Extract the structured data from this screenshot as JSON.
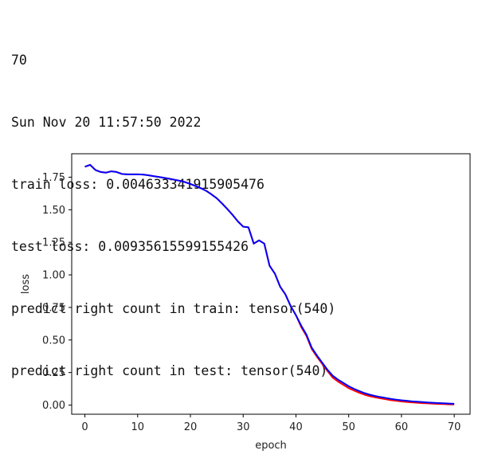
{
  "output": {
    "lines": [
      "70",
      "Sun Nov 20 11:57:50 2022",
      "train loss: 0.004633341915905476",
      "test loss: 0.00935615599155426",
      "predict right count in train: tensor(540)",
      "predict right count in test: tensor(540)"
    ]
  },
  "chart_data": {
    "type": "line",
    "title": "",
    "xlabel": "epoch",
    "ylabel": "loss",
    "xlim": [
      -2.5,
      73
    ],
    "ylim": [
      -0.07,
      1.93
    ],
    "xticks": [
      0,
      10,
      20,
      30,
      40,
      50,
      60,
      70
    ],
    "yticks": [
      0.0,
      0.25,
      0.5,
      0.75,
      1.0,
      1.25,
      1.5,
      1.75
    ],
    "ytick_labels": [
      "0.00",
      "0.25",
      "0.50",
      "0.75",
      "1.00",
      "1.25",
      "1.50",
      "1.75"
    ],
    "grid": false,
    "legend": "none",
    "x": [
      0,
      1,
      2,
      3,
      4,
      5,
      6,
      7,
      8,
      9,
      10,
      11,
      12,
      13,
      14,
      15,
      16,
      17,
      18,
      19,
      20,
      21,
      22,
      23,
      24,
      25,
      26,
      27,
      28,
      29,
      30,
      31,
      32,
      33,
      34,
      35,
      36,
      37,
      38,
      39,
      40,
      41,
      42,
      43,
      44,
      45,
      46,
      47,
      48,
      49,
      50,
      51,
      52,
      53,
      54,
      55,
      56,
      57,
      58,
      59,
      60,
      61,
      62,
      63,
      64,
      65,
      66,
      67,
      68,
      69,
      70
    ],
    "series": [
      {
        "color": "#ff0000",
        "values": [
          1.83,
          1.845,
          1.805,
          1.79,
          1.785,
          1.795,
          1.79,
          1.775,
          1.772,
          1.772,
          1.772,
          1.77,
          1.765,
          1.758,
          1.752,
          1.745,
          1.738,
          1.73,
          1.722,
          1.712,
          1.698,
          1.682,
          1.665,
          1.645,
          1.618,
          1.588,
          1.548,
          1.505,
          1.46,
          1.41,
          1.37,
          1.365,
          1.24,
          1.265,
          1.24,
          1.07,
          1.01,
          0.91,
          0.85,
          0.76,
          0.69,
          0.6,
          0.53,
          0.43,
          0.37,
          0.315,
          0.26,
          0.21,
          0.18,
          0.155,
          0.13,
          0.112,
          0.095,
          0.08,
          0.068,
          0.06,
          0.052,
          0.045,
          0.038,
          0.033,
          0.028,
          0.024,
          0.021,
          0.018,
          0.015,
          0.013,
          0.011,
          0.009,
          0.008,
          0.006,
          0.005
        ]
      },
      {
        "color": "#0000ff",
        "values": [
          1.83,
          1.845,
          1.805,
          1.79,
          1.785,
          1.795,
          1.79,
          1.775,
          1.772,
          1.772,
          1.772,
          1.77,
          1.765,
          1.758,
          1.752,
          1.745,
          1.738,
          1.73,
          1.722,
          1.712,
          1.698,
          1.682,
          1.665,
          1.645,
          1.618,
          1.588,
          1.548,
          1.505,
          1.46,
          1.41,
          1.37,
          1.365,
          1.24,
          1.265,
          1.24,
          1.07,
          1.01,
          0.91,
          0.85,
          0.76,
          0.69,
          0.61,
          0.54,
          0.44,
          0.38,
          0.325,
          0.27,
          0.225,
          0.195,
          0.17,
          0.145,
          0.125,
          0.108,
          0.092,
          0.08,
          0.07,
          0.062,
          0.055,
          0.048,
          0.042,
          0.037,
          0.033,
          0.029,
          0.026,
          0.023,
          0.02,
          0.018,
          0.016,
          0.014,
          0.012,
          0.01
        ]
      }
    ]
  }
}
